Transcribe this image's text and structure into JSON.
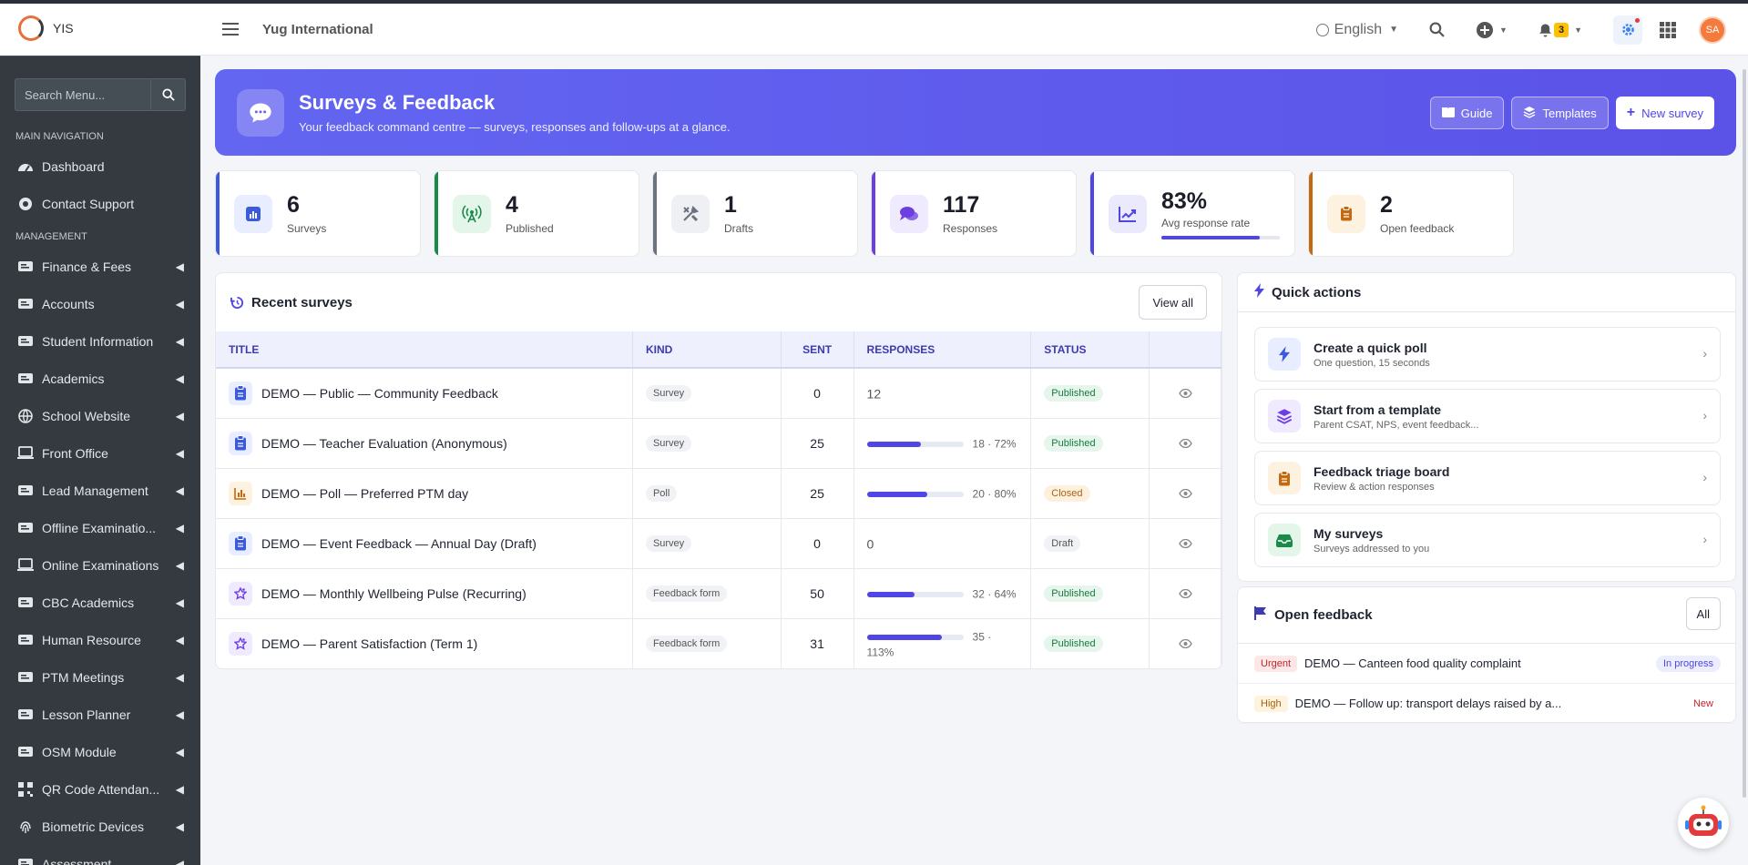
{
  "sidebar": {
    "brand": "YIS",
    "search_placeholder": "Search Menu...",
    "sections": [
      {
        "header": "MAIN NAVIGATION",
        "items": [
          {
            "label": "Dashboard",
            "icon": "dashboard-icon",
            "has_children": false
          },
          {
            "label": "Contact Support",
            "icon": "support-icon",
            "has_children": false
          }
        ]
      },
      {
        "header": "MANAGEMENT",
        "items": [
          {
            "label": "Finance & Fees",
            "icon": "wallet-icon",
            "has_children": true
          },
          {
            "label": "Accounts",
            "icon": "accounts-icon",
            "has_children": true
          },
          {
            "label": "Student Information",
            "icon": "id-card-icon",
            "has_children": true
          },
          {
            "label": "Academics",
            "icon": "school-icon",
            "has_children": true
          },
          {
            "label": "School Website",
            "icon": "globe-icon",
            "has_children": true
          },
          {
            "label": "Front Office",
            "icon": "desktop-icon",
            "has_children": true
          },
          {
            "label": "Lead Management",
            "icon": "funnel-icon",
            "has_children": true
          },
          {
            "label": "Offline Examinatio...",
            "icon": "exam-icon",
            "has_children": true
          },
          {
            "label": "Online Examinations",
            "icon": "laptop-icon",
            "has_children": true
          },
          {
            "label": "CBC Academics",
            "icon": "users-icon",
            "has_children": true
          },
          {
            "label": "Human Resource",
            "icon": "people-icon",
            "has_children": true
          },
          {
            "label": "PTM Meetings",
            "icon": "meeting-icon",
            "has_children": true
          },
          {
            "label": "Lesson Planner",
            "icon": "planner-icon",
            "has_children": true
          },
          {
            "label": "OSM Module",
            "icon": "pen-icon",
            "has_children": true
          },
          {
            "label": "QR Code Attendan...",
            "icon": "qr-icon",
            "has_children": true
          },
          {
            "label": "Biometric Devices",
            "icon": "fingerprint-icon",
            "has_children": true
          },
          {
            "label": "Assessment",
            "icon": "assessment-icon",
            "has_children": true
          }
        ]
      }
    ]
  },
  "topbar": {
    "org_name": "Yug International",
    "language": "English",
    "notification_count": "3",
    "avatar_initials": "SA"
  },
  "hero": {
    "title": "Surveys & Feedback",
    "subtitle": "Your feedback command centre — surveys, responses and follow-ups at a glance.",
    "buttons": {
      "guide": "Guide",
      "templates": "Templates",
      "new_survey": "New survey"
    }
  },
  "stats": [
    {
      "value": "6",
      "label": "Surveys",
      "color": "#3b5bdb",
      "bg": "#e8edff",
      "icon": "bar-chart-icon"
    },
    {
      "value": "4",
      "label": "Published",
      "color": "#1a8a4a",
      "bg": "#e4f6ea",
      "icon": "broadcast-icon"
    },
    {
      "value": "1",
      "label": "Drafts",
      "color": "#6b7280",
      "bg": "#eef0f3",
      "icon": "tools-icon"
    },
    {
      "value": "117",
      "label": "Responses",
      "color": "#6d3fe0",
      "bg": "#f0eafe",
      "icon": "chat-icon"
    },
    {
      "value": "83%",
      "label": "Avg response rate",
      "color": "#4f46e5",
      "bg": "#ebeafd",
      "icon": "trend-icon",
      "progress": 0.83
    },
    {
      "value": "2",
      "label": "Open feedback",
      "color": "#c36a10",
      "bg": "#fdf2e0",
      "icon": "clipboard-icon"
    }
  ],
  "recent": {
    "title": "Recent surveys",
    "view_all": "View all",
    "columns": [
      "TITLE",
      "KIND",
      "SENT",
      "RESPONSES",
      "STATUS",
      ""
    ],
    "rows": [
      {
        "title": "DEMO — Public — Community Feedback",
        "kind": "Survey",
        "sent": "0",
        "responses_text": "12",
        "rate": null,
        "status": "Published",
        "icon": "clipboard-icon",
        "icon_color": "#3b5bdb",
        "icon_bg": "#e8edff"
      },
      {
        "title": "DEMO — Teacher Evaluation (Anonymous)",
        "kind": "Survey",
        "sent": "25",
        "responses_text": "18 · 72%",
        "rate": 0.72,
        "status": "Published",
        "icon": "clipboard-icon",
        "icon_color": "#3b5bdb",
        "icon_bg": "#e8edff"
      },
      {
        "title": "DEMO — Poll — Preferred PTM day",
        "kind": "Poll",
        "sent": "25",
        "responses_text": "20 · 80%",
        "rate": 0.8,
        "status": "Closed",
        "icon": "poll-icon",
        "icon_color": "#c36a10",
        "icon_bg": "#fdf2e0"
      },
      {
        "title": "DEMO — Event Feedback — Annual Day (Draft)",
        "kind": "Survey",
        "sent": "0",
        "responses_text": "0",
        "rate": null,
        "status": "Draft",
        "icon": "clipboard-icon",
        "icon_color": "#3b5bdb",
        "icon_bg": "#e8edff"
      },
      {
        "title": "DEMO — Monthly Wellbeing Pulse (Recurring)",
        "kind": "Feedback form",
        "sent": "50",
        "responses_text": "32 · 64%",
        "rate": 0.64,
        "status": "Published",
        "icon": "star-icon",
        "icon_color": "#6d3fe0",
        "icon_bg": "#f0eafe"
      },
      {
        "title": "DEMO — Parent Satisfaction (Term 1)",
        "kind": "Feedback form",
        "sent": "31",
        "responses_text": "35 · 113%",
        "rate": 1.0,
        "status": "Published",
        "icon": "star-icon",
        "icon_color": "#6d3fe0",
        "icon_bg": "#f0eafe"
      }
    ]
  },
  "quick_actions": {
    "title": "Quick actions",
    "items": [
      {
        "title": "Create a quick poll",
        "sub": "One question, 15 seconds",
        "icon": "bolt-icon",
        "color": "#3b5bdb",
        "bg": "#e8edff"
      },
      {
        "title": "Start from a template",
        "sub": "Parent CSAT, NPS, event feedback...",
        "icon": "layers-icon",
        "color": "#6d3fe0",
        "bg": "#f0eafe"
      },
      {
        "title": "Feedback triage board",
        "sub": "Review & action responses",
        "icon": "clipboard-icon",
        "color": "#c36a10",
        "bg": "#fdf2e0"
      },
      {
        "title": "My surveys",
        "sub": "Surveys addressed to you",
        "icon": "inbox-icon",
        "color": "#1a8a4a",
        "bg": "#e4f6ea"
      }
    ]
  },
  "open_feedback": {
    "title": "Open feedback",
    "all_label": "All",
    "items": [
      {
        "priority": "Urgent",
        "text": "DEMO — Canteen food quality complaint",
        "status": "In progress"
      },
      {
        "priority": "High",
        "text": "DEMO — Follow up: transport delays raised by a...",
        "status": "New"
      }
    ]
  }
}
